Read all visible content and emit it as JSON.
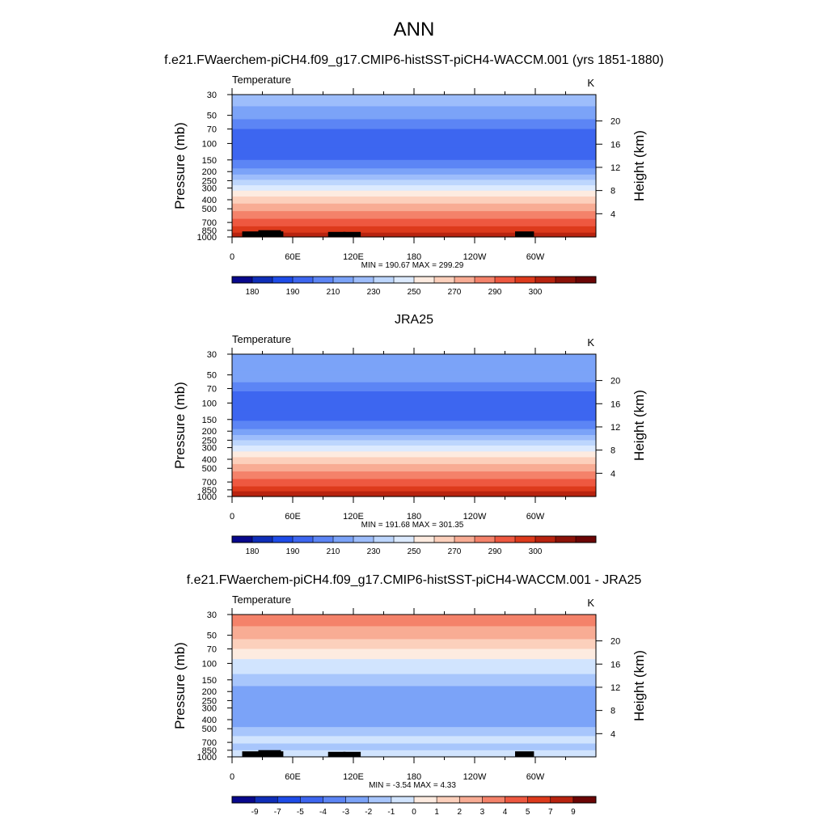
{
  "page": {
    "title": "ANN"
  },
  "colors": {
    "temp_palette": [
      "#08088c",
      "#0f2eb8",
      "#1e4ce8",
      "#3d66f0",
      "#5c85f5",
      "#7ba3f8",
      "#9dbdfb",
      "#bdd6fd",
      "#dceafe",
      "#fdebe0",
      "#fcd0bc",
      "#f8ac94",
      "#f4826a",
      "#ee5840",
      "#dd3a1c",
      "#b8230f",
      "#8b1208",
      "#6b0505"
    ],
    "diff_palette": [
      "#08088c",
      "#0f2eb8",
      "#1e4ce8",
      "#3d66f0",
      "#5c85f5",
      "#7ba3f8",
      "#a8c6fc",
      "#d1e4fe",
      "#fdebe0",
      "#fcd0bc",
      "#f8ac94",
      "#f4826a",
      "#ee5840",
      "#dd3a1c",
      "#b8230f",
      "#6b0505"
    ],
    "land_mask": "#000000"
  },
  "chart_data": [
    {
      "type": "heatmap",
      "title": "f.e21.FWaerchem-piCH4.f09_g17.CMIP6-histSST-piCH4-WACCM.001 (yrs 1851-1880)",
      "left_label": "Temperature",
      "right_label": "K",
      "xlabel": "",
      "ylabel": "Pressure (mb)",
      "ylabel_right": "Height (km)",
      "x_ticks": [
        "0",
        "60E",
        "120E",
        "180",
        "120W",
        "60W"
      ],
      "y_ticks": [
        "30",
        "50",
        "70",
        "100",
        "150",
        "200",
        "250",
        "300",
        "400",
        "500",
        "700",
        "850",
        "1000"
      ],
      "y_right_ticks": [
        "4",
        "8",
        "12",
        "16",
        "20"
      ],
      "stats": "MIN = 190.67  MAX = 299.29",
      "colorbar_labels": [
        "180",
        "190",
        "210",
        "230",
        "250",
        "270",
        "290",
        "300"
      ],
      "ylim": [
        1000,
        30
      ],
      "xlim": [
        0,
        360
      ],
      "profile": [
        {
          "p": 30,
          "band": 6
        },
        {
          "p": 40,
          "band": 5
        },
        {
          "p": 55,
          "band": 4
        },
        {
          "p": 70,
          "band": 3
        },
        {
          "p": 110,
          "band": 3
        },
        {
          "p": 150,
          "band": 4
        },
        {
          "p": 185,
          "band": 5
        },
        {
          "p": 215,
          "band": 6
        },
        {
          "p": 245,
          "band": 7
        },
        {
          "p": 280,
          "band": 8
        },
        {
          "p": 320,
          "band": 9
        },
        {
          "p": 370,
          "band": 10
        },
        {
          "p": 440,
          "band": 11
        },
        {
          "p": 530,
          "band": 12
        },
        {
          "p": 640,
          "band": 13
        },
        {
          "p": 770,
          "band": 14
        },
        {
          "p": 900,
          "band": 15
        },
        {
          "p": 1000,
          "band": 15
        }
      ],
      "land": [
        [
          10,
          0.3
        ],
        [
          26,
          0.55
        ],
        [
          32,
          0.3
        ],
        [
          95,
          0.2
        ],
        [
          110,
          0.2
        ],
        [
          280,
          0.3
        ]
      ]
    },
    {
      "type": "heatmap",
      "title": "JRA25",
      "left_label": "Temperature",
      "right_label": "K",
      "xlabel": "",
      "ylabel": "Pressure (mb)",
      "ylabel_right": "Height (km)",
      "x_ticks": [
        "0",
        "60E",
        "120E",
        "180",
        "120W",
        "60W"
      ],
      "y_ticks": [
        "30",
        "50",
        "70",
        "100",
        "150",
        "200",
        "250",
        "300",
        "400",
        "500",
        "700",
        "850",
        "1000"
      ],
      "y_right_ticks": [
        "4",
        "8",
        "12",
        "16",
        "20"
      ],
      "stats": "MIN = 191.68  MAX = 301.35",
      "colorbar_labels": [
        "180",
        "190",
        "210",
        "230",
        "250",
        "270",
        "290",
        "300"
      ],
      "ylim": [
        1000,
        30
      ],
      "xlim": [
        0,
        360
      ],
      "profile": [
        {
          "p": 30,
          "band": 5
        },
        {
          "p": 45,
          "band": 5
        },
        {
          "p": 60,
          "band": 4
        },
        {
          "p": 75,
          "band": 3
        },
        {
          "p": 120,
          "band": 3
        },
        {
          "p": 155,
          "band": 4
        },
        {
          "p": 190,
          "band": 5
        },
        {
          "p": 220,
          "band": 6
        },
        {
          "p": 250,
          "band": 7
        },
        {
          "p": 285,
          "band": 8
        },
        {
          "p": 330,
          "band": 9
        },
        {
          "p": 380,
          "band": 10
        },
        {
          "p": 450,
          "band": 11
        },
        {
          "p": 540,
          "band": 12
        },
        {
          "p": 650,
          "band": 13
        },
        {
          "p": 780,
          "band": 14
        },
        {
          "p": 880,
          "band": 15
        },
        {
          "p": 1000,
          "band": 16
        }
      ],
      "land": []
    },
    {
      "type": "heatmap",
      "title": "f.e21.FWaerchem-piCH4.f09_g17.CMIP6-histSST-piCH4-WACCM.001 - JRA25",
      "left_label": "Temperature",
      "right_label": "K",
      "xlabel": "",
      "ylabel": "Pressure (mb)",
      "ylabel_right": "Height (km)",
      "x_ticks": [
        "0",
        "60E",
        "120E",
        "180",
        "120W",
        "60W"
      ],
      "y_ticks": [
        "30",
        "50",
        "70",
        "100",
        "150",
        "200",
        "250",
        "300",
        "400",
        "500",
        "700",
        "850",
        "1000"
      ],
      "y_right_ticks": [
        "4",
        "8",
        "12",
        "16",
        "20"
      ],
      "stats": "MIN =  -3.54  MAX =   4.33",
      "colorbar_labels": [
        "-9",
        "-7",
        "-5",
        "-4",
        "-3",
        "-2",
        "-1",
        "0",
        "1",
        "2",
        "3",
        "4",
        "5",
        "7",
        "9"
      ],
      "ylim": [
        1000,
        30
      ],
      "xlim": [
        0,
        360
      ],
      "profile": [
        {
          "p": 30,
          "band": 11
        },
        {
          "p": 40,
          "band": 10
        },
        {
          "p": 55,
          "band": 9
        },
        {
          "p": 70,
          "band": 8
        },
        {
          "p": 90,
          "band": 7
        },
        {
          "p": 130,
          "band": 6
        },
        {
          "p": 175,
          "band": 5
        },
        {
          "p": 400,
          "band": 5
        },
        {
          "p": 480,
          "band": 6
        },
        {
          "p": 600,
          "band": 7
        },
        {
          "p": 720,
          "band": 6
        },
        {
          "p": 850,
          "band": 7
        },
        {
          "p": 1000,
          "band": 7
        }
      ],
      "land": [
        [
          10,
          0.3
        ],
        [
          26,
          0.55
        ],
        [
          32,
          0.3
        ],
        [
          95,
          0.2
        ],
        [
          110,
          0.2
        ],
        [
          280,
          0.3
        ]
      ]
    }
  ]
}
